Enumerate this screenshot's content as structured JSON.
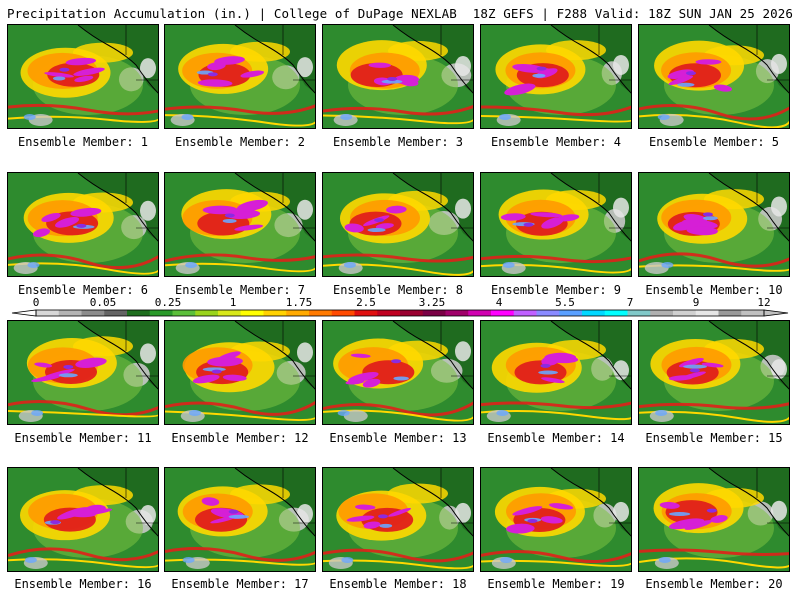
{
  "header": {
    "title": "Precipitation Accumulation (in.) | College of DuPage NEXLAB",
    "run_info": "18Z GEFS | F288 Valid: 18Z SUN JAN 25 2026"
  },
  "member_label_prefix": "Ensemble Member:",
  "members": [
    "1",
    "2",
    "3",
    "4",
    "5",
    "6",
    "7",
    "8",
    "9",
    "10",
    "11",
    "12",
    "13",
    "14",
    "15",
    "16",
    "17",
    "18",
    "19",
    "20"
  ],
  "colorbar": {
    "tick_labels": [
      "0",
      "0.05",
      "0.25",
      "1",
      "1.75",
      "2.5",
      "3.25",
      "4",
      "5.5",
      "7",
      "9",
      "12"
    ],
    "colors": [
      "#d8d8d8",
      "#b4b4b4",
      "#8c8c8c",
      "#646464",
      "#1e6e1e",
      "#2a9a2a",
      "#5bbf3a",
      "#9ad41c",
      "#d8e81a",
      "#ffff00",
      "#ffd200",
      "#ffaa00",
      "#ff7a00",
      "#ff4a00",
      "#e01010",
      "#c00020",
      "#9a0030",
      "#7a0045",
      "#a0006a",
      "#d000b0",
      "#ff00ff",
      "#c060ff",
      "#8a8aff",
      "#5aa0ff",
      "#00d8ff",
      "#00ffff",
      "#80c8c8",
      "#b0b0b0",
      "#d0d0d0",
      "#e6e6e6",
      "#9a9a9a",
      "#c0c0c0"
    ]
  },
  "map_colors": {
    "ocean": "#2e8b2e",
    "land": "#1f6b1f",
    "light": "#7cc242",
    "yellow": "#ffd800",
    "orange": "#ff9a00",
    "red": "#e0201a",
    "magenta": "#d61fd6",
    "purple": "#8a2be2",
    "blue": "#6aa6ff",
    "gray": "#c8c8c8"
  }
}
